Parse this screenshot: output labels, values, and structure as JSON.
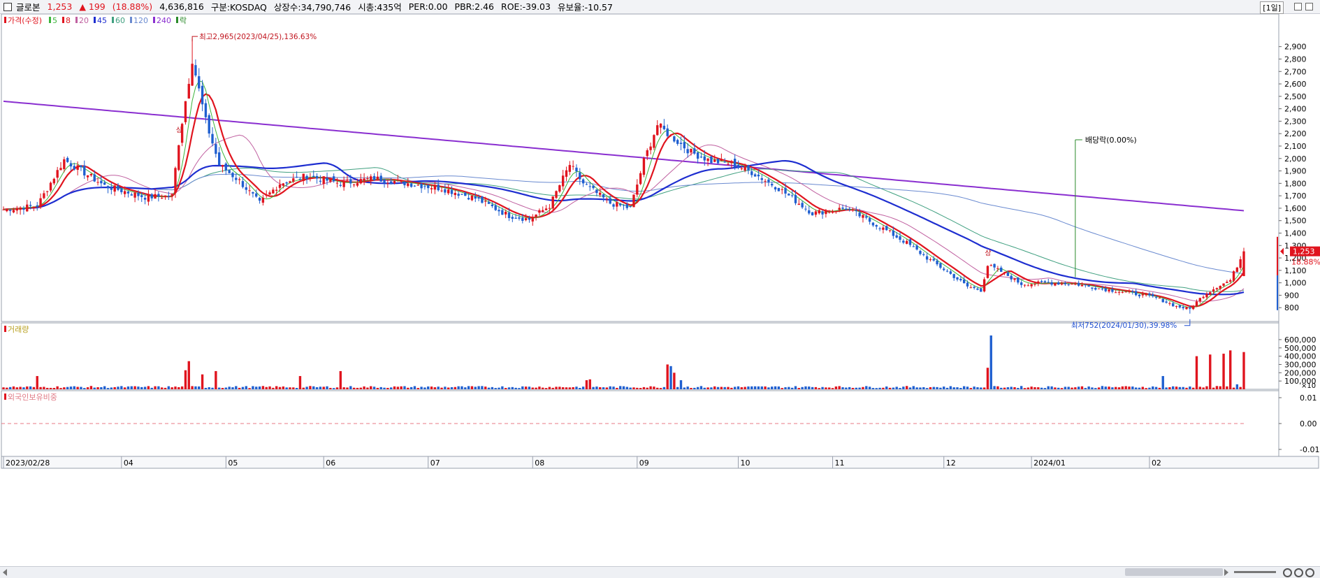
{
  "header": {
    "name": "글로본",
    "price": "1,253",
    "change": "▲ 199",
    "change_pct": "(18.88%)",
    "volume": "4,636,816",
    "market": "구분:KOSDAQ",
    "listed": "상장수:34,790,746",
    "mcap": "시총:435억",
    "per": "PER:0.00",
    "pbr": "PBR:2.46",
    "roe": "ROE:-39.03",
    "float": "유보율:-10.57",
    "period": "[1일]"
  },
  "legend": {
    "items": [
      {
        "label": "가격(수정)",
        "color": "#e0141e"
      },
      {
        "label": "5",
        "color": "#3cb43c"
      },
      {
        "label": "8",
        "color": "#e0141e"
      },
      {
        "label": "20",
        "color": "#c060a0"
      },
      {
        "label": "45",
        "color": "#1e2ed0"
      },
      {
        "label": "60",
        "color": "#40a080"
      },
      {
        "label": "120",
        "color": "#6a8ad0"
      },
      {
        "label": "240",
        "color": "#8a2fd0"
      },
      {
        "label": "락",
        "color": "#2a8a2a"
      }
    ]
  },
  "volume_panel_label": "거래량",
  "foreign_panel_label": "외국인보유비중",
  "annotations": {
    "high": "최고2,965(2023/04/25),136.63%",
    "low": "최저752(2024/01/30),39.98%",
    "dividend": "배당락(0.00%)",
    "current_price_tag": "1,253",
    "current_pct_tag": "18.88%",
    "up_mark": "상",
    "unit_label": "×10"
  },
  "chart_data": [
    {
      "type": "candlestick",
      "title": "가격(수정)",
      "ylim": [
        700,
        3050
      ],
      "yticks": [
        800,
        900,
        1000,
        1100,
        1200,
        1300,
        1400,
        1500,
        1600,
        1700,
        1800,
        1900,
        2000,
        2100,
        2200,
        2300,
        2400,
        2500,
        2600,
        2700,
        2800,
        2900
      ],
      "x_labels": [
        "2023/02/28",
        "04",
        "05",
        "06",
        "07",
        "08",
        "09",
        "10",
        "11",
        "12",
        "2024/01",
        "02"
      ],
      "anchors": [
        [
          0,
          1590
        ],
        [
          10,
          1620
        ],
        [
          18,
          1990
        ],
        [
          30,
          1780
        ],
        [
          42,
          1690
        ],
        [
          50,
          1700
        ],
        [
          52,
          2130
        ],
        [
          56,
          2800
        ],
        [
          60,
          2300
        ],
        [
          64,
          1950
        ],
        [
          70,
          1820
        ],
        [
          76,
          1640
        ],
        [
          82,
          1800
        ],
        [
          90,
          1860
        ],
        [
          100,
          1800
        ],
        [
          110,
          1840
        ],
        [
          120,
          1800
        ],
        [
          130,
          1760
        ],
        [
          140,
          1680
        ],
        [
          150,
          1540
        ],
        [
          156,
          1510
        ],
        [
          162,
          1620
        ],
        [
          168,
          1950
        ],
        [
          172,
          1800
        ],
        [
          180,
          1640
        ],
        [
          186,
          1600
        ],
        [
          190,
          1980
        ],
        [
          194,
          2270
        ],
        [
          198,
          2180
        ],
        [
          204,
          2050
        ],
        [
          210,
          1980
        ],
        [
          216,
          1960
        ],
        [
          222,
          1890
        ],
        [
          230,
          1760
        ],
        [
          240,
          1560
        ],
        [
          250,
          1600
        ],
        [
          256,
          1510
        ],
        [
          262,
          1420
        ],
        [
          268,
          1320
        ],
        [
          274,
          1200
        ],
        [
          280,
          1090
        ],
        [
          286,
          970
        ],
        [
          290,
          940
        ],
        [
          292,
          1140
        ],
        [
          296,
          1090
        ],
        [
          302,
          990
        ],
        [
          310,
          1000
        ],
        [
          318,
          990
        ],
        [
          326,
          950
        ],
        [
          334,
          920
        ],
        [
          342,
          880
        ],
        [
          348,
          810
        ],
        [
          352,
          790
        ],
        [
          356,
          900
        ],
        [
          360,
          970
        ],
        [
          364,
          1020
        ],
        [
          368,
          1253
        ]
      ],
      "high_day": 56,
      "low_day": 352,
      "total_days": 369
    },
    {
      "type": "bar",
      "title": "거래량",
      "ylim": [
        0,
        650000
      ],
      "yticks": [
        100000,
        200000,
        300000,
        400000,
        500000,
        600000
      ],
      "spikes": [
        [
          10,
          160000,
          "up"
        ],
        [
          54,
          230000,
          "up"
        ],
        [
          55,
          340000,
          "up"
        ],
        [
          59,
          180000,
          "up"
        ],
        [
          63,
          220000,
          "up"
        ],
        [
          88,
          160000,
          "up"
        ],
        [
          100,
          220000,
          "up"
        ],
        [
          173,
          110000,
          "up"
        ],
        [
          174,
          120000,
          "up"
        ],
        [
          197,
          300000,
          "up"
        ],
        [
          198,
          280000,
          "down"
        ],
        [
          199,
          200000,
          "up"
        ],
        [
          201,
          110000,
          "down"
        ],
        [
          293,
          650000,
          "down"
        ],
        [
          292,
          260000,
          "up"
        ],
        [
          344,
          160000,
          "down"
        ],
        [
          354,
          400000,
          "up"
        ],
        [
          358,
          420000,
          "up"
        ],
        [
          362,
          430000,
          "up"
        ],
        [
          364,
          470000,
          "up"
        ],
        [
          366,
          60000,
          "down"
        ],
        [
          368,
          450000,
          "up"
        ]
      ]
    },
    {
      "type": "line",
      "title": "외국인보유비중",
      "ylim": [
        -0.01,
        0.01
      ],
      "yticks": [
        -0.01,
        0.0,
        0.01
      ],
      "values": [
        0.0
      ]
    }
  ],
  "colors": {
    "up": "#e0141e",
    "down": "#1f5fd0",
    "ma240": "#8a2fd0",
    "ma45": "#1e2ed0",
    "ma8": "#e0141e",
    "ma5": "#3cb43c",
    "ma20": "#c060a0",
    "ma60": "#40a080",
    "ma120": "#6a8ad0"
  }
}
